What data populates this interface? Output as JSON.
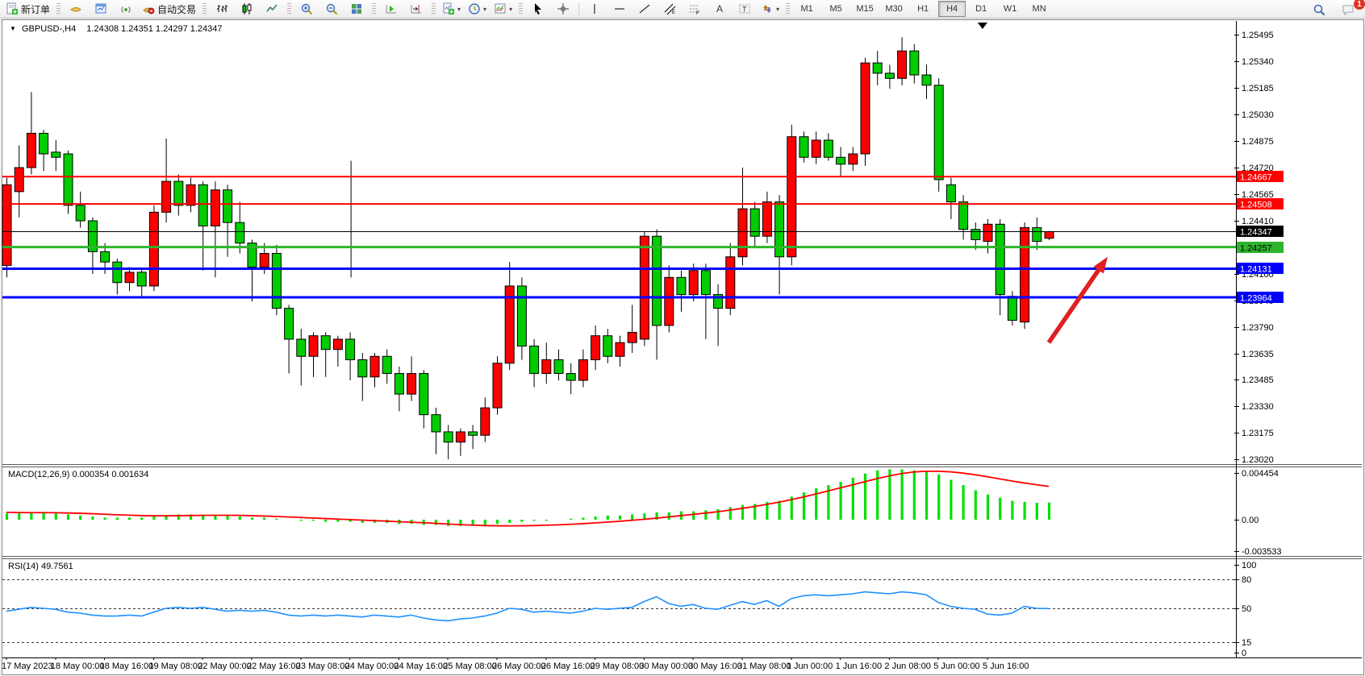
{
  "toolbar": {
    "new_order": "新订单",
    "autotrading": "自动交易",
    "timeframes": [
      "M1",
      "M5",
      "M15",
      "M30",
      "H1",
      "H4",
      "D1",
      "W1",
      "MN"
    ],
    "active_timeframe": "H4",
    "badge_count": "1"
  },
  "chart": {
    "title_symbol": "GBPUSD-,H4",
    "title_ohlc": "1.24308 1.24351 1.24297 1.24347",
    "macd_label": "MACD(12,26,9) 0.000354 0.001634",
    "rsi_label": "RSI(14) 49.7561"
  },
  "chart_data": {
    "type": "candlestick",
    "symbol": "GBPUSD-",
    "period": "H4",
    "up_color": "#FF0000",
    "down_color": "#00CC00",
    "outline_color": "#000000",
    "price_ylim": [
      1.22992,
      1.2557
    ],
    "price_axis_ticks": [
      "1.25495",
      "1.25340",
      "1.25185",
      "1.25030",
      "1.24875",
      "1.24720",
      "1.24565",
      "1.24410",
      "1.24100",
      "1.23945",
      "1.23790",
      "1.23635",
      "1.23485",
      "1.23330",
      "1.23175",
      "1.23020"
    ],
    "levels": [
      {
        "price": 1.24667,
        "color": "#FF0000",
        "width": 2,
        "label": "1.24667",
        "label_text": "#FFFFFF"
      },
      {
        "price": 1.24508,
        "color": "#FF0000",
        "width": 2,
        "label": "1.24508",
        "label_text": "#FFFFFF"
      },
      {
        "price": 1.24347,
        "color": "#000000",
        "width": 1,
        "label": "1.24347",
        "label_text": "#FFFFFF"
      },
      {
        "price": 1.24257,
        "color": "#2DB52D",
        "width": 3,
        "label": "1.24257",
        "label_text": "#000000"
      },
      {
        "price": 1.24131,
        "color": "#0000FF",
        "width": 3,
        "label": "1.24131",
        "label_text": "#FFFFFF"
      },
      {
        "price": 1.23964,
        "color": "#0000FF",
        "width": 3,
        "label": "1.23964",
        "label_text": "#FFFFFF"
      }
    ],
    "bars": [
      [
        1.2415,
        1.2466,
        1.2408,
        1.2462
      ],
      [
        1.2458,
        1.2485,
        1.2443,
        1.2472
      ],
      [
        1.2472,
        1.2516,
        1.2468,
        1.2492
      ],
      [
        1.2492,
        1.2494,
        1.247,
        1.248
      ],
      [
        1.2481,
        1.2488,
        1.247,
        1.2478
      ],
      [
        1.248,
        1.2482,
        1.2445,
        1.245
      ],
      [
        1.245,
        1.2458,
        1.2437,
        1.2441
      ],
      [
        1.2441,
        1.2443,
        1.241,
        1.2423
      ],
      [
        1.2423,
        1.2428,
        1.241,
        1.2417
      ],
      [
        1.2417,
        1.2419,
        1.2398,
        1.2405
      ],
      [
        1.2405,
        1.2414,
        1.24,
        1.2411
      ],
      [
        1.2411,
        1.2413,
        1.2396,
        1.2403
      ],
      [
        1.2403,
        1.245,
        1.24,
        1.2446
      ],
      [
        1.2446,
        1.2489,
        1.244,
        1.2464
      ],
      [
        1.2464,
        1.2468,
        1.2444,
        1.245
      ],
      [
        1.245,
        1.2466,
        1.2446,
        1.2462
      ],
      [
        1.2462,
        1.2464,
        1.2412,
        1.2438
      ],
      [
        1.2438,
        1.2464,
        1.2408,
        1.2459
      ],
      [
        1.2459,
        1.2462,
        1.242,
        1.244
      ],
      [
        1.244,
        1.2452,
        1.2422,
        1.2428
      ],
      [
        1.2428,
        1.243,
        1.2394,
        1.2414
      ],
      [
        1.2414,
        1.2428,
        1.241,
        1.2422
      ],
      [
        1.2422,
        1.2427,
        1.2386,
        1.239
      ],
      [
        1.239,
        1.2392,
        1.2352,
        1.2372
      ],
      [
        1.2372,
        1.2378,
        1.2345,
        1.2362
      ],
      [
        1.2362,
        1.2376,
        1.235,
        1.2374
      ],
      [
        1.2374,
        1.2376,
        1.235,
        1.2366
      ],
      [
        1.2366,
        1.2374,
        1.2356,
        1.2372
      ],
      [
        1.2372,
        1.2376,
        1.2348,
        1.236
      ],
      [
        1.236,
        1.2364,
        1.2336,
        1.235
      ],
      [
        1.235,
        1.2364,
        1.2344,
        1.2362
      ],
      [
        1.2362,
        1.2366,
        1.2346,
        1.2352
      ],
      [
        1.2352,
        1.2356,
        1.233,
        1.234
      ],
      [
        1.234,
        1.2362,
        1.2336,
        1.2352
      ],
      [
        1.2352,
        1.2354,
        1.232,
        1.2328
      ],
      [
        1.2328,
        1.2332,
        1.2305,
        1.2318
      ],
      [
        1.2318,
        1.2322,
        1.2302,
        1.2312
      ],
      [
        1.2312,
        1.232,
        1.2304,
        1.2318
      ],
      [
        1.2318,
        1.2322,
        1.2308,
        1.2316
      ],
      [
        1.2316,
        1.2338,
        1.2312,
        1.2332
      ],
      [
        1.2332,
        1.2362,
        1.2328,
        1.2358
      ],
      [
        1.2358,
        1.2417,
        1.2354,
        1.2403
      ],
      [
        1.2403,
        1.2408,
        1.236,
        1.2368
      ],
      [
        1.2368,
        1.2372,
        1.2344,
        1.2352
      ],
      [
        1.2352,
        1.237,
        1.2346,
        1.236
      ],
      [
        1.236,
        1.2366,
        1.2348,
        1.2352
      ],
      [
        1.2352,
        1.2358,
        1.234,
        1.2348
      ],
      [
        1.2348,
        1.2366,
        1.2344,
        1.236
      ],
      [
        1.236,
        1.238,
        1.2354,
        1.2374
      ],
      [
        1.2374,
        1.2378,
        1.2358,
        1.2362
      ],
      [
        1.2362,
        1.2374,
        1.2356,
        1.237
      ],
      [
        1.237,
        1.2392,
        1.2364,
        1.2376
      ],
      [
        1.2372,
        1.2435,
        1.2368,
        1.2432
      ],
      [
        1.2432,
        1.2436,
        1.236,
        1.238
      ],
      [
        1.238,
        1.2415,
        1.2376,
        1.2408
      ],
      [
        1.2408,
        1.2412,
        1.2388,
        1.2398
      ],
      [
        1.2398,
        1.2416,
        1.2394,
        1.2412
      ],
      [
        1.2412,
        1.2416,
        1.2372,
        1.2398
      ],
      [
        1.2398,
        1.2404,
        1.2368,
        1.239
      ],
      [
        1.239,
        1.2428,
        1.2386,
        1.242
      ],
      [
        1.242,
        1.2472,
        1.2415,
        1.2448
      ],
      [
        1.2448,
        1.2452,
        1.2425,
        1.2432
      ],
      [
        1.2432,
        1.2458,
        1.2428,
        1.2452
      ],
      [
        1.2452,
        1.2456,
        1.2398,
        1.242
      ],
      [
        1.242,
        1.2497,
        1.2415,
        1.249
      ],
      [
        1.249,
        1.2493,
        1.2475,
        1.2478
      ],
      [
        1.2478,
        1.2493,
        1.2474,
        1.2488
      ],
      [
        1.2488,
        1.2492,
        1.2476,
        1.2478
      ],
      [
        1.2478,
        1.2484,
        1.2467,
        1.2474
      ],
      [
        1.2474,
        1.2484,
        1.247,
        1.248
      ],
      [
        1.248,
        1.2536,
        1.2473,
        1.2533
      ],
      [
        1.2533,
        1.254,
        1.252,
        1.2527
      ],
      [
        1.2527,
        1.2532,
        1.2518,
        1.2524
      ],
      [
        1.2524,
        1.2548,
        1.252,
        1.254
      ],
      [
        1.254,
        1.2544,
        1.2521,
        1.2526
      ],
      [
        1.2526,
        1.2532,
        1.2512,
        1.252
      ],
      [
        1.252,
        1.2524,
        1.2458,
        1.2465
      ],
      [
        1.2462,
        1.2466,
        1.2442,
        1.2452
      ],
      [
        1.2452,
        1.2456,
        1.243,
        1.2436
      ],
      [
        1.2436,
        1.244,
        1.2424,
        1.243
      ],
      [
        1.2429,
        1.2442,
        1.2422,
        1.2439
      ],
      [
        1.2439,
        1.2442,
        1.2386,
        1.2398
      ],
      [
        1.2397,
        1.24,
        1.238,
        1.2383
      ],
      [
        1.2382,
        1.244,
        1.2378,
        1.2437
      ],
      [
        1.2437,
        1.2443,
        1.2424,
        1.2429
      ],
      [
        1.24308,
        1.24351,
        1.24297,
        1.24347
      ]
    ],
    "time_labels": [
      "17 May 2023",
      "18 May 00:00",
      "18 May 16:00",
      "19 May 08:00",
      "22 May 00:00",
      "22 May 16:00",
      "23 May 08:00",
      "24 May 00:00",
      "24 May 16:00",
      "25 May 08:00",
      "26 May 00:00",
      "26 May 16:00",
      "29 May 08:00",
      "30 May 00:00",
      "30 May 16:00",
      "31 May 08:00",
      "1 Jun 00:00",
      "1 Jun 16:00",
      "2 Jun 08:00",
      "5 Jun 00:00",
      "5 Jun 16:00"
    ],
    "time_label_step": 4,
    "macd": {
      "params": "12,26,9",
      "hist_color": "#00E000",
      "signal_color": "#FF0000",
      "ylim": [
        -0.003379,
        0.004915
      ],
      "axis_ticks": [
        "0.004454",
        "0.00",
        "-0.003533"
      ],
      "hist": [
        0.0006,
        0.0006,
        0.0007,
        0.0007,
        0.0006,
        0.0005,
        0.0004,
        0.0003,
        0.0002,
        0.0002,
        0.0002,
        0.0002,
        0.0003,
        0.0004,
        0.0005,
        0.0005,
        0.0005,
        0.0004,
        0.0004,
        0.0003,
        0.0002,
        0.0002,
        0.0001,
        0.0,
        -0.0001,
        -0.0001,
        -0.0002,
        -0.0002,
        -0.0002,
        -0.0003,
        -0.0003,
        -0.0003,
        -0.0004,
        -0.0004,
        -0.0005,
        -0.0005,
        -0.0006,
        -0.0006,
        -0.0005,
        -0.0005,
        -0.0004,
        -0.0003,
        -0.0002,
        -0.0001,
        -0.0001,
        0.0,
        0.0001,
        0.0002,
        0.0003,
        0.0004,
        0.0004,
        0.0005,
        0.0006,
        0.0007,
        0.0007,
        0.0008,
        0.0008,
        0.0009,
        0.001,
        0.0012,
        0.0014,
        0.0015,
        0.0017,
        0.0018,
        0.0022,
        0.0026,
        0.003,
        0.0033,
        0.0036,
        0.004,
        0.0044,
        0.0047,
        0.0048,
        0.0048,
        0.0047,
        0.0046,
        0.0043,
        0.0038,
        0.0033,
        0.0028,
        0.0024,
        0.0021,
        0.0018,
        0.0017,
        0.0016,
        0.001634
      ],
      "signal": [
        0.0007,
        0.00068,
        0.00067,
        0.00067,
        0.00066,
        0.00064,
        0.00061,
        0.00057,
        0.00052,
        0.00047,
        0.00043,
        0.00039,
        0.00037,
        0.00037,
        0.00038,
        0.0004,
        0.00041,
        0.00042,
        0.00042,
        0.00041,
        0.00038,
        0.00035,
        0.00031,
        0.00026,
        0.00021,
        0.00016,
        0.00011,
        6e-05,
        1e-05,
        -4e-05,
        -9e-05,
        -0.00014,
        -0.00019,
        -0.00024,
        -0.00029,
        -0.00035,
        -0.00041,
        -0.00047,
        -0.00052,
        -0.00056,
        -0.00058,
        -0.00059,
        -0.00058,
        -0.00056,
        -0.00053,
        -0.00049,
        -0.00044,
        -0.00038,
        -0.00031,
        -0.00023,
        -0.00015,
        -6e-05,
        4e-05,
        0.00015,
        0.00027,
        0.00039,
        0.00051,
        0.00063,
        0.00076,
        0.00091,
        0.00108,
        0.00126,
        0.00146,
        0.00167,
        0.00191,
        0.00217,
        0.00245,
        0.00274,
        0.00303,
        0.00332,
        0.00362,
        0.00392,
        0.00418,
        0.0044,
        0.00455,
        0.00462,
        0.00462,
        0.00456,
        0.00444,
        0.00428,
        0.00409,
        0.00389,
        0.00369,
        0.0035,
        0.00333,
        0.00318
      ]
    },
    "rsi": {
      "period": 14,
      "color": "#1E90FF",
      "ylim": [
        0,
        100
      ],
      "levels": [
        80,
        50,
        15
      ],
      "axis_ticks": [
        "100",
        "80",
        "50",
        "15",
        "0"
      ],
      "values": [
        47,
        49,
        51,
        50,
        49,
        46,
        45,
        43,
        42,
        42,
        43,
        42,
        46,
        50,
        51,
        50,
        51,
        49,
        47,
        48,
        47,
        48,
        46,
        43,
        42,
        43,
        42,
        43,
        42,
        41,
        43,
        42,
        41,
        43,
        40,
        38,
        37,
        39,
        40,
        42,
        45,
        50,
        49,
        46,
        47,
        46,
        45,
        47,
        50,
        49,
        50,
        51,
        57,
        62,
        55,
        52,
        54,
        50,
        49,
        53,
        57,
        54,
        58,
        52,
        60,
        63,
        64,
        63,
        64,
        65,
        67,
        66,
        65,
        67,
        66,
        64,
        56,
        52,
        50,
        49,
        44,
        43,
        45,
        52,
        50,
        49.7561
      ]
    },
    "annotations": {
      "arrow": {
        "from_bar": 85.0,
        "from_price": 1.237,
        "to_bar": 89.8,
        "to_price": 1.242,
        "color": "#DE2020"
      },
      "vline": {
        "bar": 28.1,
        "price_top": 1.2476,
        "price_bottom": 1.2408,
        "color": "#000000"
      },
      "shift_marker_bar": 79.6
    }
  }
}
